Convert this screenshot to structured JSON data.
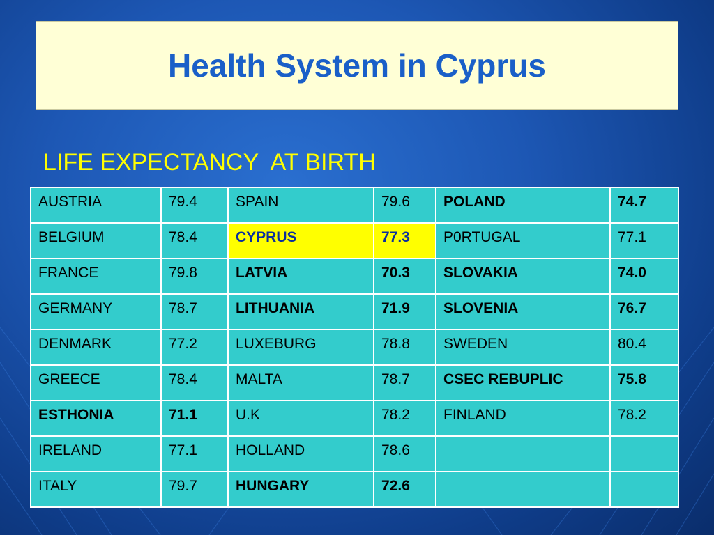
{
  "slide": {
    "title": "Health System in Cyprus",
    "subtitle": "LIFE EXPECTANCY  AT BIRTH"
  },
  "colors": {
    "background": "#1d57b4",
    "title_box": "#ffffd6",
    "title_text": "#1a5fc8",
    "subtitle_text": "#ffff00",
    "table_cell": "#33cccc",
    "highlight_cell": "#ffff00",
    "highlight_text": "#0b2f9e"
  },
  "table": {
    "rows": [
      [
        {
          "text": "AUSTRIA"
        },
        {
          "text": "79.4"
        },
        {
          "text": "SPAIN"
        },
        {
          "text": "79.6"
        },
        {
          "text": "POLAND",
          "bold": true
        },
        {
          "text": "74.7",
          "bold": true
        }
      ],
      [
        {
          "text": "BELGIUM"
        },
        {
          "text": "78.4"
        },
        {
          "text": "CYPRUS",
          "bold": true,
          "highlight": true
        },
        {
          "text": "77.3",
          "bold": true,
          "highlight": true
        },
        {
          "text": "P0RTUGAL"
        },
        {
          "text": "77.1"
        }
      ],
      [
        {
          "text": "FRANCE"
        },
        {
          "text": "79.8"
        },
        {
          "text": "LATVIA",
          "bold": true
        },
        {
          "text": "70.3",
          "bold": true
        },
        {
          "text": "SLOVAKIA",
          "bold": true
        },
        {
          "text": "74.0",
          "bold": true
        }
      ],
      [
        {
          "text": "GERMANY"
        },
        {
          "text": "78.7"
        },
        {
          "text": "LITHUANIA",
          "bold": true
        },
        {
          "text": "71.9",
          "bold": true
        },
        {
          "text": "SLOVENIA",
          "bold": true
        },
        {
          "text": "76.7",
          "bold": true
        }
      ],
      [
        {
          "text": "DENMARK"
        },
        {
          "text": "77.2"
        },
        {
          "text": "LUXEBURG"
        },
        {
          "text": "78.8"
        },
        {
          "text": "SWEDEN"
        },
        {
          "text": "80.4"
        }
      ],
      [
        {
          "text": "GREECE"
        },
        {
          "text": "78.4"
        },
        {
          "text": "MALTA"
        },
        {
          "text": "78.7"
        },
        {
          "text": "CSEC REBUPLIC",
          "bold": true
        },
        {
          "text": "75.8",
          "bold": true
        }
      ],
      [
        {
          "text": "ESTHONIA",
          "bold": true
        },
        {
          "text": "71.1",
          "bold": true
        },
        {
          "text": "U.K"
        },
        {
          "text": "78.2"
        },
        {
          "text": "FINLAND"
        },
        {
          "text": "78.2"
        }
      ],
      [
        {
          "text": "IRELAND"
        },
        {
          "text": "77.1"
        },
        {
          "text": "HOLLAND"
        },
        {
          "text": "78.6"
        },
        {
          "text": ""
        },
        {
          "text": ""
        }
      ],
      [
        {
          "text": "ITALY"
        },
        {
          "text": "79.7"
        },
        {
          "text": "HUNGARY",
          "bold": true
        },
        {
          "text": "72.6",
          "bold": true
        },
        {
          "text": ""
        },
        {
          "text": ""
        }
      ]
    ]
  }
}
